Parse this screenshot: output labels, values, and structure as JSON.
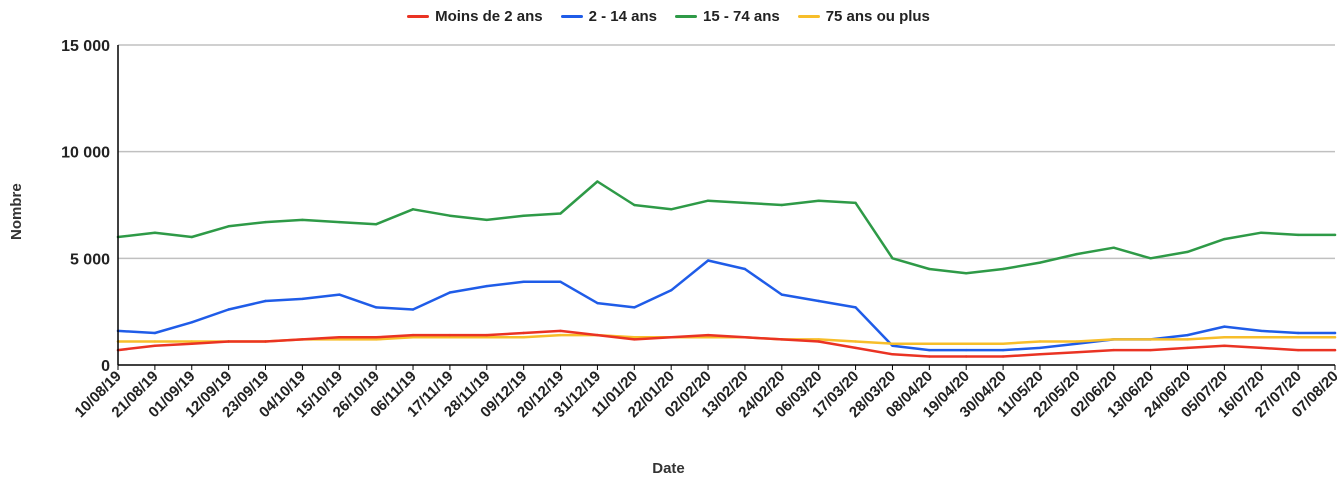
{
  "chart_data": {
    "type": "line",
    "title": "",
    "xlabel": "Date",
    "ylabel": "Nombre",
    "ylim": [
      0,
      15000
    ],
    "yticks": [
      0,
      5000,
      10000,
      15000
    ],
    "ytick_labels": [
      "0",
      "5 000",
      "10 000",
      "15 000"
    ],
    "grid": true,
    "legend_position": "top-center",
    "x_tick_labels": [
      "10/08/19",
      "21/08/19",
      "01/09/19",
      "12/09/19",
      "23/09/19",
      "04/10/19",
      "15/10/19",
      "26/10/19",
      "06/11/19",
      "17/11/19",
      "28/11/19",
      "09/12/19",
      "20/12/19",
      "31/12/19",
      "11/01/20",
      "22/01/20",
      "02/02/20",
      "13/02/20",
      "24/02/20",
      "06/03/20",
      "17/03/20",
      "28/03/20",
      "08/04/20",
      "19/04/20",
      "30/04/20",
      "11/05/20",
      "22/05/20",
      "02/06/20",
      "13/06/20",
      "24/06/20",
      "05/07/20",
      "16/07/20",
      "27/07/20",
      "07/08/20"
    ],
    "series": [
      {
        "name": "Moins de 2 ans",
        "color": "#ea3323",
        "values": [
          700,
          900,
          1000,
          1100,
          1100,
          1200,
          1300,
          1300,
          1400,
          1400,
          1400,
          1500,
          1600,
          1400,
          1200,
          1300,
          1400,
          1300,
          1200,
          1100,
          800,
          500,
          400,
          400,
          400,
          500,
          600,
          700,
          700,
          800,
          900,
          800,
          700,
          700
        ]
      },
      {
        "name": "2 - 14 ans",
        "color": "#1f5ce8",
        "values": [
          1600,
          1500,
          2000,
          2600,
          3000,
          3100,
          3300,
          2700,
          2600,
          3400,
          3700,
          3900,
          3900,
          2900,
          2700,
          3500,
          4900,
          4500,
          3300,
          3000,
          2700,
          900,
          700,
          700,
          700,
          800,
          1000,
          1200,
          1200,
          1400,
          1800,
          1600,
          1500,
          1500
        ]
      },
      {
        "name": "15 - 74 ans",
        "color": "#2e9a47",
        "values": [
          6000,
          6200,
          6000,
          6500,
          6700,
          6800,
          6700,
          6600,
          7300,
          7000,
          6800,
          7000,
          7100,
          8600,
          7500,
          7300,
          7700,
          7600,
          7500,
          7700,
          7600,
          5000,
          4500,
          4300,
          4500,
          4800,
          5200,
          5500,
          5000,
          5300,
          5900,
          6200,
          6100,
          6100
        ]
      },
      {
        "name": "75 ans ou plus",
        "color": "#f7be2a",
        "values": [
          1100,
          1100,
          1100,
          1100,
          1100,
          1200,
          1200,
          1200,
          1300,
          1300,
          1300,
          1300,
          1400,
          1400,
          1300,
          1300,
          1300,
          1300,
          1200,
          1200,
          1100,
          1000,
          1000,
          1000,
          1000,
          1100,
          1100,
          1200,
          1200,
          1200,
          1300,
          1300,
          1300,
          1300
        ]
      }
    ]
  }
}
